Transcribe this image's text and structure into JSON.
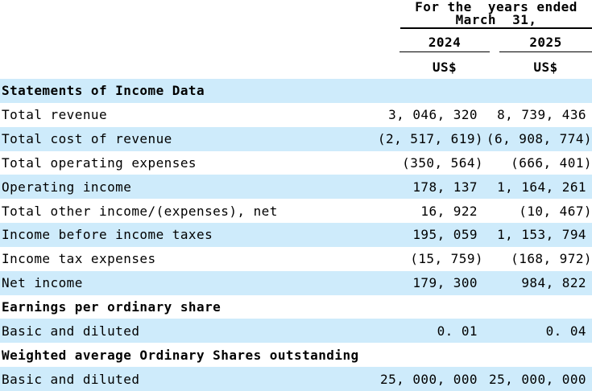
{
  "header": {
    "caption_line1": "For the  years ended",
    "caption_line2": "March  31,",
    "columns": [
      {
        "year": "2024",
        "currency": "US$"
      },
      {
        "year": "2025",
        "currency": "US$"
      }
    ]
  },
  "table": {
    "rows": [
      {
        "label": "Statements of Income Data",
        "type": "section",
        "shaded": true,
        "c1": "",
        "c2": ""
      },
      {
        "label": "Total revenue",
        "type": "data",
        "shaded": false,
        "c1": "3, 046, 320",
        "c2": "8, 739, 436"
      },
      {
        "label": "Total cost of revenue",
        "type": "data",
        "shaded": true,
        "c1": "(2, 517, 619)",
        "c2": "(6, 908, 774)"
      },
      {
        "label": "Total operating expenses",
        "type": "data",
        "shaded": false,
        "c1": "(350, 564)",
        "c2": "(666, 401)"
      },
      {
        "label": "Operating income",
        "type": "data",
        "shaded": true,
        "c1": "178, 137",
        "c2": "1, 164, 261"
      },
      {
        "label": "Total other income/(expenses), net",
        "type": "data",
        "shaded": false,
        "c1": "16, 922",
        "c2": "(10, 467)"
      },
      {
        "label": "Income before income taxes",
        "type": "data",
        "shaded": true,
        "c1": "195, 059",
        "c2": "1, 153, 794"
      },
      {
        "label": "Income tax expenses",
        "type": "data",
        "shaded": false,
        "c1": "(15, 759)",
        "c2": "(168, 972)"
      },
      {
        "label": "Net income",
        "type": "data",
        "shaded": true,
        "c1": "179, 300",
        "c2": "984, 822"
      },
      {
        "label": "Earnings per ordinary share",
        "type": "section",
        "shaded": false,
        "c1": "",
        "c2": ""
      },
      {
        "label": "Basic and diluted",
        "type": "data",
        "shaded": true,
        "c1": "0. 01",
        "c2": "0. 04"
      },
      {
        "label": "Weighted average Ordinary Shares outstanding",
        "type": "section",
        "shaded": false,
        "c1": "",
        "c2": ""
      },
      {
        "label": "Basic and diluted",
        "type": "data",
        "shaded": true,
        "c1": "25, 000, 000",
        "c2": "25, 000, 000"
      }
    ]
  },
  "colors": {
    "row_shade": "#CEEBFB",
    "text": "#000000",
    "rule": "#000000",
    "background": "#FFFFFF"
  }
}
